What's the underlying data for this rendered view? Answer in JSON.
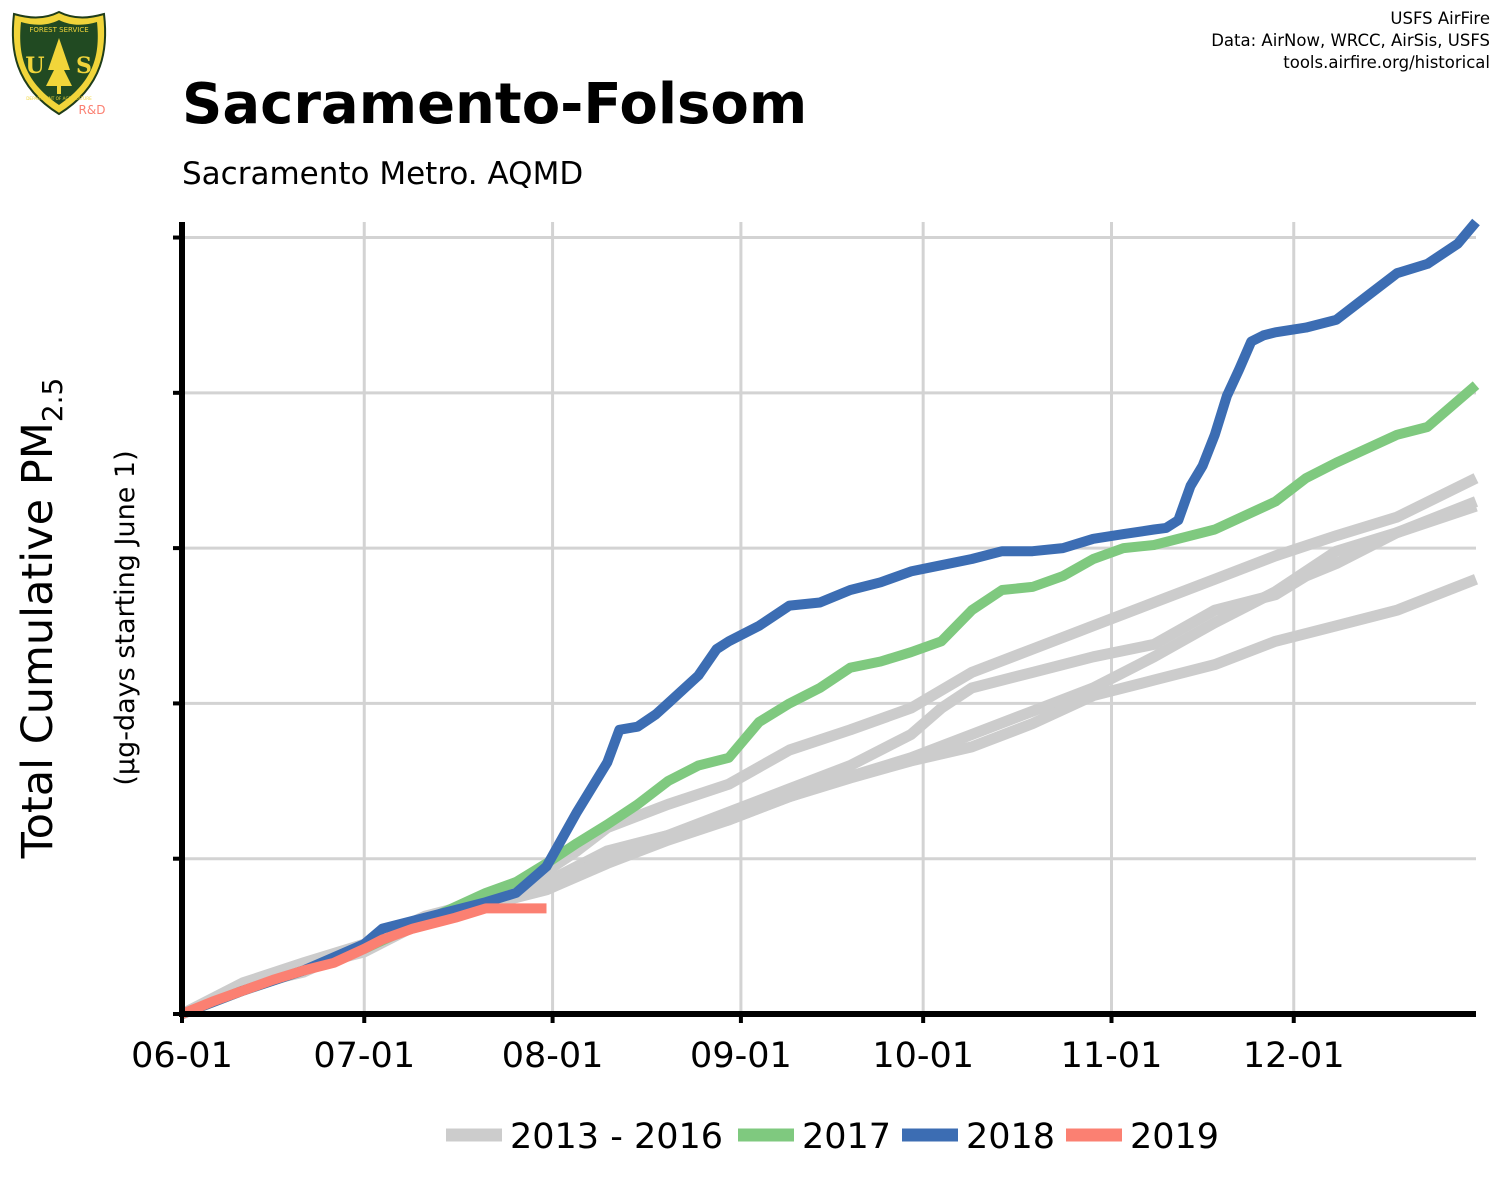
{
  "header": {
    "title": "Sacramento-Folsom",
    "subtitle": "Sacramento Metro. AQMD",
    "credits": [
      "USFS AirFire",
      "Data: AirNow, WRCC, AirSis, USFS",
      "tools.airfire.org/historical"
    ]
  },
  "logo": {
    "top_text": "FOREST SERVICE",
    "letters": "U S",
    "bottom_text": "DEPARTMENT OF AGRICULTURE",
    "tag": "R&D"
  },
  "colors": {
    "historical": "#cccccc",
    "y2017": "#7fc97f",
    "y2018": "#3c6db3",
    "y2019": "#fb8072",
    "grid": "#d3d3d3",
    "axis": "#000000"
  },
  "chart_data": {
    "type": "line",
    "title": "Sacramento-Folsom",
    "subtitle": "Sacramento Metro. AQMD",
    "ylabel": "Total Cumulative PM2.5",
    "ylabel_main": "Total Cumulative PM",
    "ylabel_sub": "2.5",
    "ylabel_units": "(µg-days starting June 1)",
    "x_tick_labels": [
      "06-01",
      "07-01",
      "08-01",
      "09-01",
      "10-01",
      "11-01",
      "12-01"
    ],
    "x_tick_days": [
      0,
      30,
      61,
      92,
      122,
      153,
      183
    ],
    "xlim": [
      0,
      213
    ],
    "ylim": [
      0,
      5.1
    ],
    "y_ticks": [
      0,
      1,
      2,
      3,
      4,
      5
    ],
    "y_tick_labels_shown": false,
    "x_unit": "days since June 1",
    "y_unit": "relative (unlabeled axis)",
    "grid": true,
    "legend_position": "bottom",
    "legend": [
      "2013 - 2016",
      "2017",
      "2018",
      "2019"
    ],
    "series": [
      {
        "name": "2013 - 2016",
        "group": "historical",
        "x": [
          0,
          10,
          20,
          30,
          40,
          50,
          55,
          60,
          65,
          70,
          80,
          90,
          100,
          110,
          120,
          130,
          140,
          150,
          160,
          170,
          180,
          190,
          200,
          213
        ],
        "y": [
          0,
          0.16,
          0.3,
          0.4,
          0.6,
          0.72,
          0.75,
          0.92,
          1.05,
          1.2,
          1.35,
          1.48,
          1.7,
          1.83,
          1.97,
          2.2,
          2.35,
          2.5,
          2.65,
          2.8,
          2.95,
          3.08,
          3.2,
          3.45
        ]
      },
      {
        "name": "2013 - 2016",
        "group": "historical",
        "x": [
          0,
          10,
          20,
          30,
          40,
          50,
          60,
          70,
          80,
          90,
          100,
          110,
          120,
          125,
          130,
          140,
          150,
          160,
          170,
          180,
          185,
          190,
          200,
          213
        ],
        "y": [
          0,
          0.18,
          0.27,
          0.45,
          0.63,
          0.73,
          0.85,
          1.05,
          1.15,
          1.3,
          1.45,
          1.6,
          1.8,
          1.97,
          2.1,
          2.2,
          2.3,
          2.38,
          2.6,
          2.7,
          2.82,
          2.9,
          3.1,
          3.3
        ]
      },
      {
        "name": "2013 - 2016",
        "group": "historical",
        "x": [
          0,
          10,
          20,
          30,
          40,
          50,
          60,
          70,
          80,
          90,
          100,
          110,
          120,
          130,
          140,
          150,
          160,
          170,
          180,
          190,
          200,
          213
        ],
        "y": [
          0,
          0.2,
          0.33,
          0.45,
          0.58,
          0.7,
          0.8,
          0.97,
          1.12,
          1.25,
          1.4,
          1.53,
          1.65,
          1.8,
          1.95,
          2.1,
          2.3,
          2.52,
          2.72,
          2.98,
          3.1,
          3.27
        ]
      },
      {
        "name": "2013 - 2016",
        "group": "historical",
        "x": [
          0,
          10,
          20,
          30,
          40,
          50,
          60,
          70,
          80,
          90,
          100,
          110,
          120,
          130,
          140,
          150,
          160,
          170,
          180,
          190,
          200,
          213
        ],
        "y": [
          0,
          0.17,
          0.28,
          0.42,
          0.6,
          0.73,
          0.83,
          1.0,
          1.15,
          1.25,
          1.4,
          1.52,
          1.63,
          1.72,
          1.87,
          2.05,
          2.15,
          2.25,
          2.4,
          2.5,
          2.6,
          2.8
        ]
      },
      {
        "name": "2017",
        "group": "y2017",
        "x": [
          0,
          10,
          20,
          30,
          40,
          50,
          55,
          60,
          65,
          70,
          75,
          80,
          85,
          90,
          95,
          100,
          105,
          110,
          115,
          120,
          125,
          130,
          135,
          140,
          145,
          150,
          155,
          160,
          170,
          180,
          185,
          190,
          200,
          205,
          213
        ],
        "y": [
          0,
          0.15,
          0.28,
          0.42,
          0.6,
          0.78,
          0.85,
          0.97,
          1.1,
          1.22,
          1.35,
          1.5,
          1.6,
          1.65,
          1.88,
          2.0,
          2.1,
          2.23,
          2.27,
          2.33,
          2.4,
          2.6,
          2.73,
          2.75,
          2.82,
          2.93,
          3.0,
          3.02,
          3.12,
          3.3,
          3.45,
          3.55,
          3.73,
          3.78,
          4.05
        ]
      },
      {
        "name": "2018",
        "group": "y2018",
        "x": [
          0,
          10,
          20,
          30,
          33,
          40,
          50,
          55,
          60,
          65,
          70,
          72,
          75,
          78,
          80,
          85,
          88,
          90,
          95,
          100,
          105,
          110,
          115,
          120,
          125,
          130,
          135,
          140,
          145,
          150,
          155,
          160,
          162,
          164,
          166,
          168,
          170,
          172,
          174,
          176,
          178,
          180,
          185,
          190,
          195,
          200,
          205,
          210,
          213
        ],
        "y": [
          0,
          0.15,
          0.28,
          0.45,
          0.55,
          0.62,
          0.72,
          0.78,
          0.95,
          1.3,
          1.62,
          1.83,
          1.85,
          1.93,
          2.0,
          2.18,
          2.35,
          2.4,
          2.5,
          2.63,
          2.65,
          2.73,
          2.78,
          2.85,
          2.89,
          2.93,
          2.98,
          2.98,
          3.0,
          3.06,
          3.09,
          3.12,
          3.13,
          3.18,
          3.4,
          3.53,
          3.73,
          3.98,
          4.15,
          4.33,
          4.37,
          4.39,
          4.42,
          4.47,
          4.62,
          4.77,
          4.83,
          4.96,
          5.1
        ]
      },
      {
        "name": "2019",
        "group": "y2019",
        "x": [
          0,
          5,
          10,
          15,
          20,
          25,
          30,
          33,
          38,
          45,
          50,
          55,
          58,
          60
        ],
        "y": [
          0,
          0.08,
          0.15,
          0.22,
          0.28,
          0.33,
          0.42,
          0.48,
          0.55,
          0.62,
          0.68,
          0.68,
          0.68,
          0.68
        ]
      }
    ]
  }
}
